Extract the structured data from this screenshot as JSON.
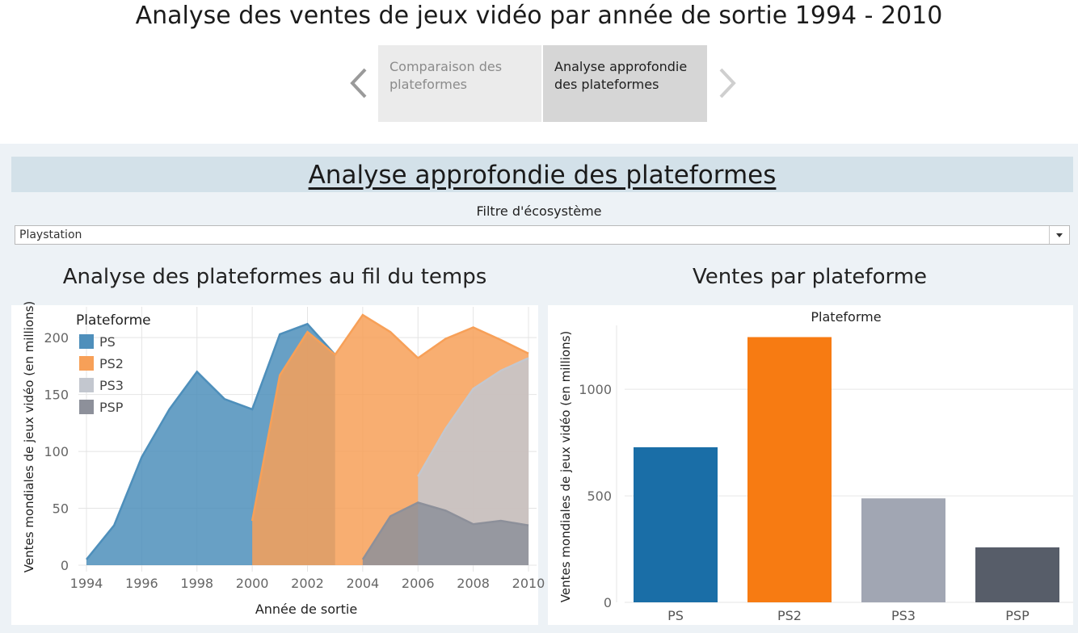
{
  "page": {
    "title": "Analyse des ventes de jeux vidéo par année de sortie 1994 - 2010"
  },
  "story": {
    "points": [
      {
        "label_line1": "Comparaison des",
        "label_line2": "plateformes"
      },
      {
        "label_line1": "Analyse approfondie",
        "label_line2": "des plateformes"
      }
    ],
    "prev_icon": "chevron-left-icon",
    "next_icon": "chevron-right-icon"
  },
  "dashboard": {
    "title": "Analyse approfondie des plateformes",
    "filter_label": "Filtre d'écosystème",
    "filter_value": "Playstation"
  },
  "colors": {
    "PS": "#4e8fbb",
    "PS2": "#f7a058",
    "PS3": "#c3c7cf",
    "PSP": "#8d909a",
    "bar_PS": "#1a6ea7",
    "bar_PS2": "#f77b12",
    "bar_PS3": "#a1a6b3",
    "bar_PSP": "#575d69"
  },
  "chart_data": [
    {
      "type": "area",
      "title": "Analyse des plateformes au fil du temps",
      "xlabel": "Année de sortie",
      "ylabel": "Ventes mondiales de jeux vidéo (en millions)",
      "legend_title": "Plateforme",
      "legend_position": "top-left",
      "x": [
        1994,
        1995,
        1996,
        1997,
        1998,
        1999,
        2000,
        2001,
        2002,
        2003,
        2004,
        2005,
        2006,
        2007,
        2008,
        2009,
        2010
      ],
      "x_ticks": [
        "1994",
        "1996",
        "1998",
        "2000",
        "2002",
        "2004",
        "2006",
        "2008",
        "2010"
      ],
      "y_ticks": [
        "0",
        "50",
        "100",
        "150",
        "200"
      ],
      "ylim": [
        0,
        220
      ],
      "grid": true,
      "series": [
        {
          "name": "PS",
          "values": [
            5,
            35,
            95,
            137,
            170,
            146,
            137,
            203,
            212,
            185,
            null,
            null,
            null,
            null,
            null,
            null,
            null
          ]
        },
        {
          "name": "PS2",
          "values": [
            null,
            null,
            null,
            null,
            null,
            null,
            39,
            167,
            205,
            185,
            220,
            205,
            182,
            199,
            209,
            198,
            186
          ]
        },
        {
          "name": "PS3",
          "values": [
            null,
            null,
            null,
            null,
            null,
            null,
            null,
            null,
            null,
            null,
            null,
            null,
            78,
            120,
            155,
            171,
            182
          ]
        },
        {
          "name": "PSP",
          "values": [
            null,
            null,
            null,
            null,
            null,
            null,
            null,
            null,
            null,
            null,
            5,
            43,
            55,
            48,
            36,
            39,
            35
          ]
        }
      ]
    },
    {
      "type": "bar",
      "title": "Ventes par plateforme",
      "header": "Plateforme",
      "xlabel": "",
      "ylabel": "Ventes mondiales de jeux vidéo (en millions)",
      "categories": [
        "PS",
        "PS2",
        "PS3",
        "PSP"
      ],
      "values": [
        728,
        1245,
        488,
        258
      ],
      "y_ticks": [
        "0",
        "500",
        "1000"
      ],
      "ylim": [
        0,
        1300
      ],
      "grid": true
    }
  ]
}
